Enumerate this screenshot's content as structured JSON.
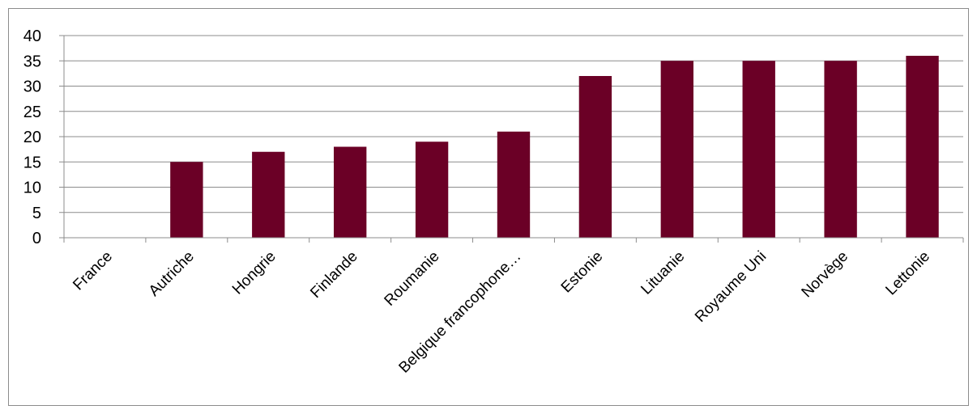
{
  "chart_data": {
    "type": "bar",
    "categories": [
      "France",
      "Autriche",
      "Hongrie",
      "Finlande",
      "Roumanie",
      "Belgique francophone…",
      "Estonie",
      "Lituanie",
      "Royaume Uni",
      "Norvège",
      "Lettonie"
    ],
    "values": [
      0,
      15,
      17,
      18,
      19,
      21,
      32,
      35,
      35,
      35,
      36
    ],
    "ylim": [
      0,
      40
    ],
    "yticks": [
      0,
      5,
      10,
      15,
      20,
      25,
      30,
      35,
      40
    ],
    "grid": true,
    "legend": "none",
    "bar_color": "#6b0026",
    "grid_color": "#8c8c8c"
  }
}
